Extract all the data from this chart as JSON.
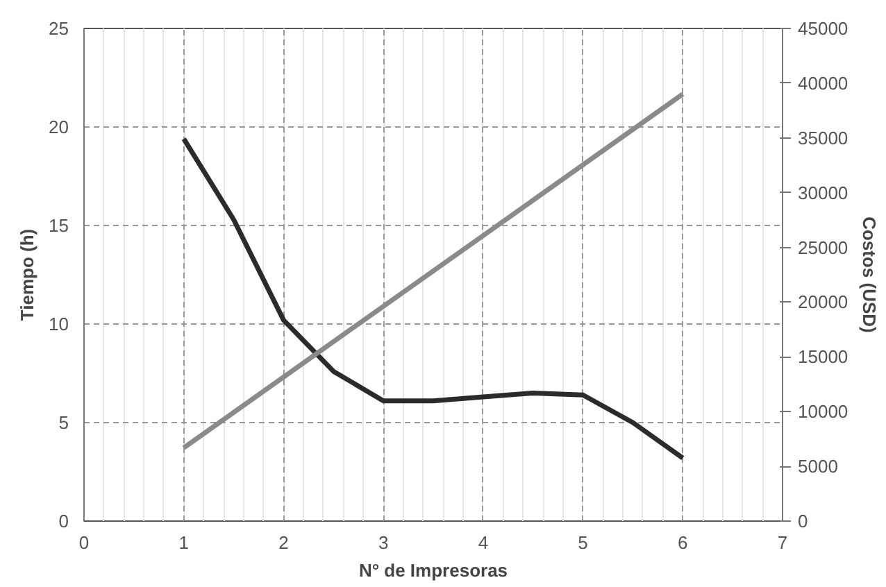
{
  "chart_data": {
    "type": "line",
    "xlabel": "N° de Impresoras",
    "ylabel": "Tiempo (h)",
    "y2label": "Costos (USD)",
    "xlim": [
      0,
      7
    ],
    "xticks": [
      0,
      1,
      2,
      3,
      4,
      5,
      6,
      7
    ],
    "ylim": [
      0,
      25
    ],
    "yticks": [
      0,
      5,
      10,
      15,
      20,
      25
    ],
    "y2lim": [
      0,
      45000
    ],
    "y2ticks": [
      0,
      5000,
      10000,
      15000,
      20000,
      25000,
      30000,
      35000,
      40000,
      45000
    ],
    "grid": true,
    "marker": "none",
    "line_style": "solid",
    "series": [
      {
        "color": "#2b2b2b",
        "x": [
          1,
          1.5,
          2,
          2.5,
          3,
          3.5,
          4,
          4.5,
          5,
          5.5,
          6
        ],
        "values": [
          19.4,
          15.3,
          10.2,
          7.6,
          6.1,
          6.1,
          6.3,
          6.5,
          6.4,
          5.0,
          3.2
        ]
      },
      {
        "color": "#8a8a8a",
        "axis": "y2",
        "x": [
          1,
          6
        ],
        "values": [
          6700,
          39000
        ]
      }
    ]
  }
}
